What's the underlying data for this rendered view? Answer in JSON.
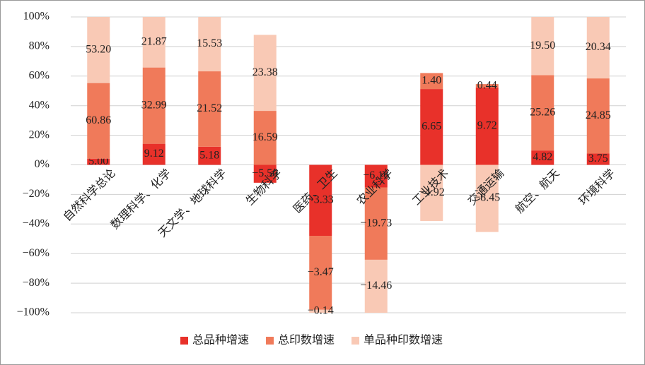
{
  "chart_data": {
    "type": "percent_stacked_bar",
    "categories": [
      "自然科学总论",
      "数理科学、化学",
      "天文学、地球科学",
      "生物科学",
      "医药、卫生",
      "农业科学",
      "工业技术",
      "交通运输",
      "航空、航天",
      "环境科学"
    ],
    "series": [
      {
        "name": "总品种增速",
        "color": "#e8312a",
        "values": [
          5.0,
          9.12,
          5.18,
          -5.5,
          -3.33,
          -6.16,
          6.65,
          9.72,
          4.82,
          3.75
        ],
        "value_labels": [
          "5.00",
          "9.12",
          "5.18",
          "−5.50",
          "−3.33",
          "−6.16",
          "6.65",
          "9.72",
          "4.82",
          "3.75"
        ]
      },
      {
        "name": "总印数增速",
        "color": "#f07a5a",
        "values": [
          60.86,
          32.99,
          21.52,
          16.59,
          -3.47,
          -19.73,
          1.4,
          0.44,
          25.26,
          24.85
        ],
        "value_labels": [
          "60.86",
          "32.99",
          "21.52",
          "16.59",
          "−3.47",
          "−19.73",
          "1.40",
          "0.44",
          "25.26",
          "24.85"
        ]
      },
      {
        "name": "单品种印数增速",
        "color": "#f9c9b5",
        "values": [
          53.2,
          21.87,
          15.53,
          23.38,
          -0.14,
          -14.46,
          -4.92,
          -8.45,
          19.5,
          20.34
        ],
        "value_labels": [
          "53.20",
          "21.87",
          "15.53",
          "23.38",
          "−0.14",
          "−14.46",
          "−4.92",
          "−8.45",
          "19.50",
          "20.34"
        ]
      }
    ],
    "ylim": [
      -100,
      100
    ],
    "yticks": [
      {
        "value": -100,
        "label": "−100%"
      },
      {
        "value": -80,
        "label": "−80%"
      },
      {
        "value": -60,
        "label": "−60%"
      },
      {
        "value": -40,
        "label": "−40%"
      },
      {
        "value": -20,
        "label": "−20%"
      },
      {
        "value": 0,
        "label": "0%"
      },
      {
        "value": 20,
        "label": "20%"
      },
      {
        "value": 40,
        "label": "40%"
      },
      {
        "value": 60,
        "label": "60%"
      },
      {
        "value": 80,
        "label": "80%"
      },
      {
        "value": 100,
        "label": "100%"
      }
    ],
    "grid": true
  }
}
